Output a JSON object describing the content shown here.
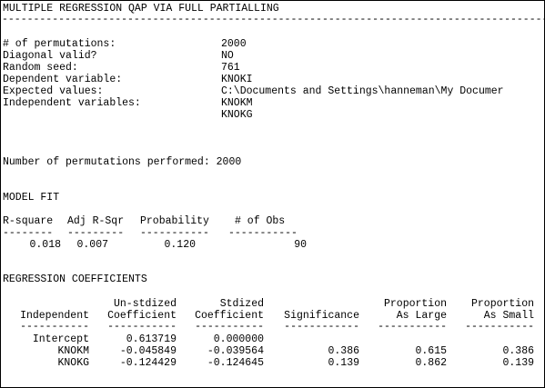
{
  "header": {
    "title": "MULTIPLE REGRESSION QAP VIA FULL PARTIALLING",
    "separator": "------------------------------------------------------------------------------------------------------------------------------------------------------"
  },
  "params": {
    "permutations_label": "# of permutations:",
    "permutations_value": "2000",
    "diagonal_label": "Diagonal valid?",
    "diagonal_value": "NO",
    "seed_label": "Random seed:",
    "seed_value": "761",
    "dependent_label": "Dependent variable:",
    "dependent_value": "KNOKI",
    "expected_label": "Expected values:",
    "expected_value": "C:\\Documents and Settings\\hanneman\\My Documer",
    "independent_label": "Independent variables:",
    "independent_values": [
      "KNOKM",
      "KNOKG"
    ]
  },
  "performed": "Number of permutations performed: 2000",
  "model_fit": {
    "heading": "MODEL FIT",
    "headers": [
      "R-square",
      "Adj R-Sqr",
      "Probability",
      "# of Obs"
    ],
    "dashes": [
      "--------",
      "---------",
      "-----------",
      "-----------"
    ],
    "values": [
      "0.018",
      "0.007",
      "0.120",
      "90"
    ]
  },
  "coefficients": {
    "heading": "REGRESSION COEFFICIENTS",
    "headers_top": [
      "",
      "Un-stdized",
      "Stdized",
      "",
      "Proportion",
      "Proportion"
    ],
    "headers_bottom": [
      "Independent",
      "Coefficient",
      "Coefficient",
      "Significance",
      "As Large",
      "As Small"
    ],
    "dashes": [
      "-----------",
      "-----------",
      "-----------",
      "------------",
      "-----------",
      "-----------"
    ],
    "rows": [
      [
        "Intercept",
        "0.613719",
        "0.000000",
        "",
        "",
        ""
      ],
      [
        "KNOKM",
        "-0.045849",
        "-0.039564",
        "0.386",
        "0.615",
        "0.386"
      ],
      [
        "KNOKG",
        "-0.124429",
        "-0.124645",
        "0.139",
        "0.862",
        "0.139"
      ]
    ]
  }
}
